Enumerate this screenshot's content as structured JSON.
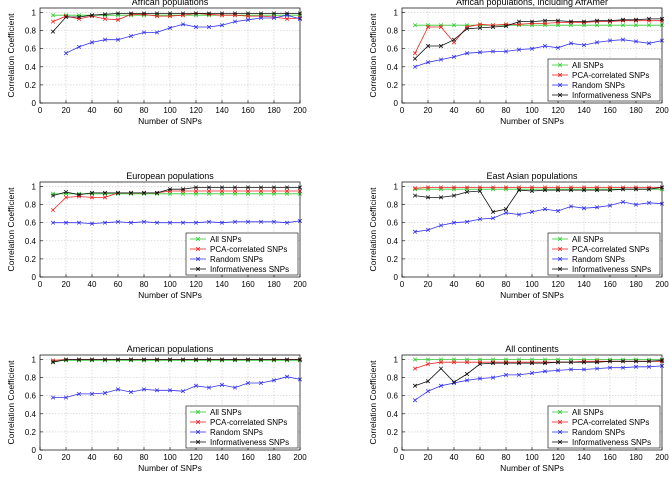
{
  "legend_labels": [
    "All SNPs",
    "PCA-correlated SNPs",
    "Random SNPs",
    "Informativeness SNPs"
  ],
  "colors": {
    "All SNPs": "#33cc33",
    "PCA-correlated SNPs": "#ee2222",
    "Random SNPs": "#3333ee",
    "Informativeness SNPs": "#111111"
  },
  "chart_data": [
    {
      "type": "line",
      "title": "African populations",
      "xlabel": "Number of SNPs",
      "ylabel": "Correlation Coefficient",
      "xlim": [
        0,
        200
      ],
      "ylim": [
        0,
        1.05
      ],
      "xticks": [
        0,
        20,
        40,
        60,
        80,
        100,
        120,
        140,
        160,
        180,
        200
      ],
      "yticks": [
        0,
        0.2,
        0.4,
        0.6,
        0.8,
        1
      ],
      "yticklabels": [
        "0",
        "0.2",
        "0.4",
        "0.6",
        "0.8",
        "1"
      ],
      "grid": true,
      "legend": false,
      "x": [
        10,
        20,
        30,
        40,
        50,
        60,
        70,
        80,
        90,
        100,
        110,
        120,
        130,
        140,
        150,
        160,
        170,
        180,
        190,
        200
      ],
      "series": [
        {
          "name": "All SNPs",
          "values": [
            0.97,
            0.97,
            0.97,
            0.97,
            0.97,
            0.97,
            0.97,
            0.97,
            0.97,
            0.97,
            0.97,
            0.97,
            0.97,
            0.97,
            0.97,
            0.97,
            0.97,
            0.97,
            0.97,
            0.97
          ]
        },
        {
          "name": "PCA-correlated SNPs",
          "values": [
            0.9,
            0.96,
            0.93,
            0.96,
            0.93,
            0.92,
            0.98,
            0.98,
            0.96,
            0.96,
            0.97,
            0.99,
            0.98,
            0.97,
            0.97,
            0.96,
            0.96,
            0.95,
            0.93,
            0.94
          ]
        },
        {
          "name": "Random SNPs",
          "values": [
            null,
            0.55,
            0.62,
            0.67,
            0.7,
            0.7,
            0.74,
            0.78,
            0.78,
            0.83,
            0.87,
            0.84,
            0.84,
            0.86,
            0.9,
            0.92,
            0.94,
            0.94,
            0.97,
            0.93
          ]
        },
        {
          "name": "Informativeness SNPs",
          "values": [
            0.79,
            0.95,
            0.95,
            0.97,
            0.98,
            0.99,
            0.99,
            0.99,
            0.99,
            0.99,
            0.99,
            0.99,
            0.99,
            0.99,
            0.99,
            0.99,
            0.99,
            0.99,
            0.99,
            0.99
          ]
        }
      ]
    },
    {
      "type": "line",
      "title": "African populations, including AfrAmer",
      "xlabel": "Number of SNPs",
      "ylabel": "Correlation Coefficient",
      "xlim": [
        0,
        200
      ],
      "ylim": [
        0,
        1.05
      ],
      "xticks": [
        0,
        20,
        40,
        60,
        80,
        100,
        120,
        140,
        160,
        180,
        200
      ],
      "yticks": [
        0,
        0.2,
        0.4,
        0.6,
        0.8,
        1
      ],
      "yticklabels": [
        "0",
        "0.2",
        "0.4",
        "0.6",
        "0.8",
        "1"
      ],
      "grid": true,
      "legend": true,
      "x": [
        10,
        20,
        30,
        40,
        50,
        60,
        70,
        80,
        90,
        100,
        110,
        120,
        130,
        140,
        150,
        160,
        170,
        180,
        190,
        200
      ],
      "series": [
        {
          "name": "All SNPs",
          "values": [
            0.86,
            0.86,
            0.86,
            0.86,
            0.86,
            0.86,
            0.86,
            0.86,
            0.86,
            0.86,
            0.86,
            0.86,
            0.86,
            0.86,
            0.86,
            0.86,
            0.86,
            0.86,
            0.86,
            0.86
          ]
        },
        {
          "name": "PCA-correlated SNPs",
          "values": [
            0.55,
            0.84,
            0.84,
            0.67,
            0.84,
            0.87,
            0.86,
            0.87,
            0.87,
            0.88,
            0.88,
            0.89,
            0.89,
            0.89,
            0.9,
            0.9,
            0.91,
            0.91,
            0.91,
            0.91
          ]
        },
        {
          "name": "Random SNPs",
          "values": [
            0.4,
            0.45,
            0.48,
            0.51,
            0.55,
            0.56,
            0.57,
            0.57,
            0.59,
            0.6,
            0.63,
            0.61,
            0.66,
            0.64,
            0.67,
            0.69,
            0.7,
            0.68,
            0.66,
            0.69
          ]
        },
        {
          "name": "Informativeness SNPs",
          "values": [
            0.49,
            0.63,
            0.63,
            0.7,
            0.82,
            0.83,
            0.84,
            0.85,
            0.9,
            0.9,
            0.91,
            0.91,
            0.9,
            0.9,
            0.91,
            0.91,
            0.92,
            0.92,
            0.93,
            0.93
          ]
        }
      ]
    },
    {
      "type": "line",
      "title": "European populations",
      "xlabel": "Number of SNPs",
      "ylabel": "Correlation Coefficient",
      "xlim": [
        0,
        200
      ],
      "ylim": [
        0,
        1.05
      ],
      "xticks": [
        0,
        20,
        40,
        60,
        80,
        100,
        120,
        140,
        160,
        180,
        200
      ],
      "yticks": [
        0,
        0.2,
        0.4,
        0.6,
        0.8,
        1
      ],
      "yticklabels": [
        "0",
        "0.2",
        "0.4",
        "0.6",
        "0.8",
        "1"
      ],
      "grid": true,
      "legend": true,
      "x": [
        10,
        20,
        30,
        40,
        50,
        60,
        70,
        80,
        90,
        100,
        110,
        120,
        130,
        140,
        150,
        160,
        170,
        180,
        190,
        200
      ],
      "series": [
        {
          "name": "All SNPs",
          "values": [
            0.92,
            0.92,
            0.92,
            0.92,
            0.92,
            0.92,
            0.92,
            0.92,
            0.92,
            0.92,
            0.92,
            0.92,
            0.92,
            0.92,
            0.92,
            0.92,
            0.92,
            0.92,
            0.92,
            0.92
          ]
        },
        {
          "name": "PCA-correlated SNPs",
          "values": [
            0.74,
            0.88,
            0.89,
            0.88,
            0.88,
            0.93,
            0.93,
            0.93,
            0.93,
            0.95,
            0.95,
            0.95,
            0.95,
            0.95,
            0.95,
            0.95,
            0.95,
            0.95,
            0.95,
            0.95
          ]
        },
        {
          "name": "Random SNPs",
          "values": [
            0.6,
            0.6,
            0.6,
            0.59,
            0.6,
            0.61,
            0.6,
            0.61,
            0.6,
            0.6,
            0.6,
            0.6,
            0.61,
            0.6,
            0.61,
            0.61,
            0.61,
            0.61,
            0.6,
            0.62
          ]
        },
        {
          "name": "Informativeness SNPs",
          "values": [
            0.9,
            0.94,
            0.91,
            0.93,
            0.93,
            0.93,
            0.93,
            0.93,
            0.93,
            0.97,
            0.97,
            0.99,
            0.99,
            0.99,
            0.99,
            0.99,
            0.99,
            0.99,
            0.99,
            0.99
          ]
        }
      ]
    },
    {
      "type": "line",
      "title": "East Asian populations",
      "xlabel": "Number of SNPs",
      "ylabel": "Correlation Coefficient",
      "xlim": [
        0,
        200
      ],
      "ylim": [
        0,
        1.05
      ],
      "xticks": [
        0,
        20,
        40,
        60,
        80,
        100,
        120,
        140,
        160,
        180,
        200
      ],
      "yticks": [
        0,
        0.2,
        0.4,
        0.6,
        0.8,
        1
      ],
      "yticklabels": [
        "0",
        "0.2",
        "0.4",
        "0.6",
        "0.8",
        "1"
      ],
      "grid": true,
      "legend": true,
      "x": [
        10,
        20,
        30,
        40,
        50,
        60,
        70,
        80,
        90,
        100,
        110,
        120,
        130,
        140,
        150,
        160,
        170,
        180,
        190,
        200
      ],
      "series": [
        {
          "name": "All SNPs",
          "values": [
            0.97,
            0.97,
            0.97,
            0.97,
            0.97,
            0.97,
            0.97,
            0.97,
            0.97,
            0.97,
            0.97,
            0.97,
            0.97,
            0.97,
            0.97,
            0.97,
            0.97,
            0.97,
            0.97,
            0.97
          ]
        },
        {
          "name": "PCA-correlated SNPs",
          "values": [
            0.98,
            0.99,
            0.99,
            0.99,
            0.99,
            0.99,
            0.99,
            0.99,
            0.99,
            0.99,
            0.99,
            0.99,
            0.99,
            0.99,
            0.99,
            0.99,
            0.99,
            0.99,
            0.99,
            0.99
          ]
        },
        {
          "name": "Random SNPs",
          "values": [
            0.5,
            0.52,
            0.57,
            0.6,
            0.61,
            0.64,
            0.65,
            0.71,
            0.69,
            0.72,
            0.75,
            0.73,
            0.78,
            0.76,
            0.77,
            0.79,
            0.83,
            0.8,
            0.82,
            0.81
          ]
        },
        {
          "name": "Informativeness SNPs",
          "values": [
            0.9,
            0.88,
            0.88,
            0.9,
            0.94,
            0.95,
            0.72,
            0.75,
            0.96,
            0.95,
            0.96,
            0.96,
            0.96,
            0.96,
            0.96,
            0.96,
            0.97,
            0.97,
            0.97,
            0.99
          ]
        }
      ]
    },
    {
      "type": "line",
      "title": "American populations",
      "xlabel": "Number of SNPs",
      "ylabel": "Correlation Coefficient",
      "xlim": [
        0,
        200
      ],
      "ylim": [
        0,
        1.05
      ],
      "xticks": [
        0,
        20,
        40,
        60,
        80,
        100,
        120,
        140,
        160,
        180,
        200
      ],
      "yticks": [
        0,
        0.2,
        0.4,
        0.6,
        0.8,
        1
      ],
      "yticklabels": [
        "0",
        "0.2",
        "0.4",
        "0.6",
        "0.8",
        "1"
      ],
      "grid": true,
      "legend": true,
      "x": [
        10,
        20,
        30,
        40,
        50,
        60,
        70,
        80,
        90,
        100,
        110,
        120,
        130,
        140,
        150,
        160,
        170,
        180,
        190,
        200
      ],
      "series": [
        {
          "name": "All SNPs",
          "values": [
            0.98,
            0.99,
            0.99,
            0.99,
            0.99,
            0.99,
            0.99,
            0.99,
            0.99,
            0.99,
            0.99,
            0.99,
            0.99,
            0.99,
            0.99,
            0.99,
            0.99,
            0.99,
            0.99,
            0.99
          ]
        },
        {
          "name": "PCA-correlated SNPs",
          "values": [
            0.99,
            1.0,
            1.0,
            1.0,
            1.0,
            1.0,
            1.0,
            1.0,
            1.0,
            1.0,
            1.0,
            1.0,
            1.0,
            1.0,
            1.0,
            1.0,
            1.0,
            1.0,
            1.0,
            1.0
          ]
        },
        {
          "name": "Random SNPs",
          "values": [
            0.58,
            0.58,
            0.62,
            0.62,
            0.63,
            0.67,
            0.64,
            0.67,
            0.66,
            0.66,
            0.65,
            0.71,
            0.69,
            0.72,
            0.69,
            0.74,
            0.74,
            0.77,
            0.81,
            0.78
          ]
        },
        {
          "name": "Informativeness SNPs",
          "values": [
            0.97,
            1.0,
            1.0,
            1.0,
            1.0,
            1.0,
            1.0,
            1.0,
            1.0,
            1.0,
            1.0,
            1.0,
            1.0,
            1.0,
            1.0,
            1.0,
            1.0,
            1.0,
            1.0,
            1.0
          ]
        }
      ]
    },
    {
      "type": "line",
      "title": "All continents",
      "xlabel": "Number of SNPs",
      "ylabel": "Correlation Coefficient",
      "xlim": [
        0,
        200
      ],
      "ylim": [
        0,
        1.05
      ],
      "xticks": [
        0,
        20,
        40,
        60,
        80,
        100,
        120,
        140,
        160,
        180,
        200
      ],
      "yticks": [
        0,
        0.2,
        0.4,
        0.6,
        0.8,
        1
      ],
      "yticklabels": [
        "0",
        "0.2",
        "0.4",
        "0.6",
        "0.8",
        "1"
      ],
      "grid": true,
      "legend": true,
      "x": [
        10,
        20,
        30,
        40,
        50,
        60,
        70,
        80,
        90,
        100,
        110,
        120,
        130,
        140,
        150,
        160,
        170,
        180,
        190,
        200
      ],
      "series": [
        {
          "name": "All SNPs",
          "values": [
            1.0,
            1.0,
            1.0,
            1.0,
            1.0,
            1.0,
            1.0,
            1.0,
            1.0,
            1.0,
            1.0,
            1.0,
            1.0,
            1.0,
            1.0,
            1.0,
            1.0,
            1.0,
            1.0,
            1.0
          ]
        },
        {
          "name": "PCA-correlated SNPs",
          "values": [
            0.9,
            0.95,
            0.97,
            0.97,
            0.97,
            0.97,
            0.97,
            0.97,
            0.97,
            0.97,
            0.97,
            0.97,
            0.97,
            0.98,
            0.98,
            0.98,
            0.98,
            0.98,
            0.98,
            0.98
          ]
        },
        {
          "name": "Random SNPs",
          "values": [
            0.55,
            0.65,
            0.71,
            0.74,
            0.77,
            0.79,
            0.8,
            0.83,
            0.83,
            0.85,
            0.87,
            0.88,
            0.89,
            0.89,
            0.9,
            0.91,
            0.91,
            0.92,
            0.92,
            0.93
          ]
        },
        {
          "name": "Informativeness SNPs",
          "values": [
            0.71,
            0.76,
            0.9,
            0.75,
            0.84,
            0.95,
            0.96,
            0.96,
            0.96,
            0.96,
            0.96,
            0.97,
            0.97,
            0.97,
            0.97,
            0.98,
            0.98,
            0.98,
            0.98,
            0.99
          ]
        }
      ]
    }
  ]
}
